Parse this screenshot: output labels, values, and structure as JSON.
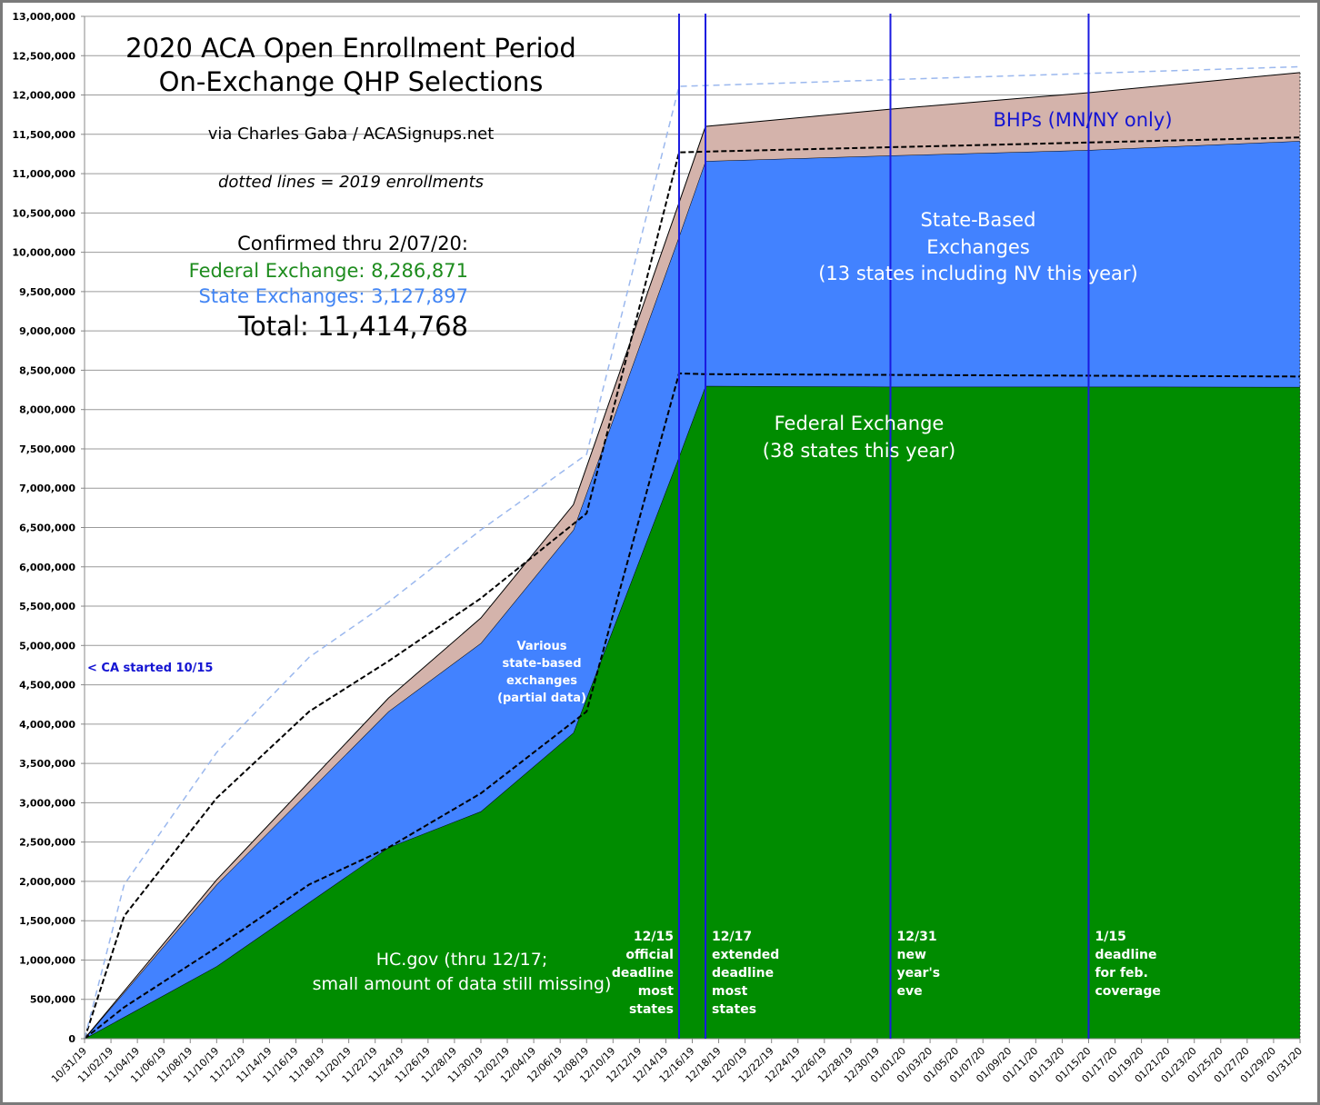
{
  "chart_data": {
    "type": "area",
    "title": [
      "2020 ACA Open Enrollment Period",
      "On-Exchange QHP Selections"
    ],
    "subtitle": "via Charles Gaba / ACASignups.net",
    "note": "dotted lines = 2019 enrollments",
    "xlabel": "",
    "ylabel": "",
    "xlim": [
      "10/31/19",
      "01/31/20"
    ],
    "ylim": [
      0,
      13000000
    ],
    "grid": true,
    "legend": "none",
    "stacked": true,
    "y_ticks": [
      "0",
      "500,000",
      "1,000,000",
      "1,500,000",
      "2,000,000",
      "2,500,000",
      "3,000,000",
      "3,500,000",
      "4,000,000",
      "4,500,000",
      "5,000,000",
      "5,500,000",
      "6,000,000",
      "6,500,000",
      "7,000,000",
      "7,500,000",
      "8,000,000",
      "8,500,000",
      "9,000,000",
      "9,500,000",
      "10,000,000",
      "10,500,000",
      "11,000,000",
      "11,500,000",
      "12,000,000",
      "12,500,000",
      "13,000,000"
    ],
    "x_ticks": [
      "10/31/19",
      "11/02/19",
      "11/04/19",
      "11/06/19",
      "11/08/19",
      "11/10/19",
      "11/12/19",
      "11/14/19",
      "11/16/19",
      "11/18/19",
      "11/20/19",
      "11/22/19",
      "11/24/19",
      "11/26/19",
      "11/28/19",
      "11/30/19",
      "12/02/19",
      "12/04/19",
      "12/06/19",
      "12/08/19",
      "12/10/19",
      "12/12/19",
      "12/14/19",
      "12/16/19",
      "12/18/19",
      "12/20/19",
      "12/22/19",
      "12/24/19",
      "12/26/19",
      "12/28/19",
      "12/30/19",
      "01/01/20",
      "01/03/20",
      "01/05/20",
      "01/07/20",
      "01/09/20",
      "01/11/20",
      "01/13/20",
      "01/15/20",
      "01/17/20",
      "01/19/20",
      "01/21/20",
      "01/23/20",
      "01/25/20",
      "01/27/20",
      "01/29/20",
      "01/31/20"
    ],
    "x_2020": [
      "10/31/19",
      "11/10/19",
      "11/23/19",
      "11/30/19",
      "12/07/19",
      "12/15/19",
      "12/17/19",
      "12/31/19",
      "01/15/20",
      "01/31/20"
    ],
    "series": [
      {
        "id": "federal",
        "color": "#008c00",
        "values": [
          0,
          920000,
          2430000,
          2890000,
          3890000,
          7400000,
          8300000,
          8290000,
          8290000,
          8286871
        ]
      },
      {
        "id": "state",
        "color": "#4282ff",
        "values": [
          0,
          1040000,
          1730000,
          2140000,
          2580000,
          2800000,
          2860000,
          2940000,
          3010000,
          3127897
        ]
      },
      {
        "id": "bhp",
        "color": "#d4b3ab",
        "values": [
          0,
          60000,
          170000,
          320000,
          320000,
          430000,
          440000,
          590000,
          730000,
          870000
        ]
      }
    ],
    "x_2019": [
      "10/31/19",
      "11/03/19",
      "11/10/19",
      "11/17/19",
      "11/23/19",
      "11/30/19",
      "12/08/19",
      "12/15/19",
      "12/17/19",
      "01/31/20"
    ],
    "series_2019": [
      {
        "id": "federal-2019",
        "color": "#000000",
        "values": [
          0,
          400000,
          1160000,
          1960000,
          2430000,
          3120000,
          4160000,
          8460000,
          8450000,
          8420000
        ]
      },
      {
        "id": "qhp-total-2019",
        "color": "#000000",
        "values": [
          0,
          1560000,
          3060000,
          4160000,
          4800000,
          5600000,
          6680000,
          11270000,
          11280000,
          11460000
        ]
      },
      {
        "id": "total-with-bhp-2019",
        "color": "#9bb8ee",
        "values": [
          0,
          1960000,
          3640000,
          4850000,
          5550000,
          6470000,
          7430000,
          12110000,
          12120000,
          12360000
        ]
      }
    ],
    "markers": [
      {
        "date": "12/15/19",
        "lines": [
          "12/15",
          "official",
          "deadline",
          "most",
          "states"
        ]
      },
      {
        "date": "12/17/19",
        "lines": [
          "12/17",
          "extended",
          "deadline",
          "most",
          "states"
        ]
      },
      {
        "date": "12/31/19",
        "lines": [
          "12/31",
          "new",
          "year's",
          "eve"
        ]
      },
      {
        "date": "01/15/20",
        "lines": [
          "1/15",
          "deadline",
          "for feb.",
          "coverage"
        ]
      }
    ],
    "marker_color": "#1a1ae0",
    "annotations": {
      "confirmed": "Confirmed thru 2/07/20:",
      "federal_total": "Federal Exchange: 8,286,871",
      "state_total": "State Exchanges: 3,127,897",
      "grand_total": "Total: 11,414,768",
      "bhp_label": "BHPs (MN/NY only)",
      "state_based": [
        "State-Based",
        "Exchanges",
        "(13 states including NV this year)"
      ],
      "federal_label": [
        "Federal Exchange",
        "(38 states this year)"
      ],
      "various": [
        "Various",
        "state-based",
        "exchanges",
        "(partial data)"
      ],
      "ca_note": "< CA started 10/15",
      "hcgov": [
        "HC.gov (thru 12/17;",
        "small amount of data still missing)"
      ]
    },
    "colors": {
      "federal_text": "#1e8c1e",
      "state_text": "#4285f4",
      "bhp_text": "#1414d2"
    }
  }
}
